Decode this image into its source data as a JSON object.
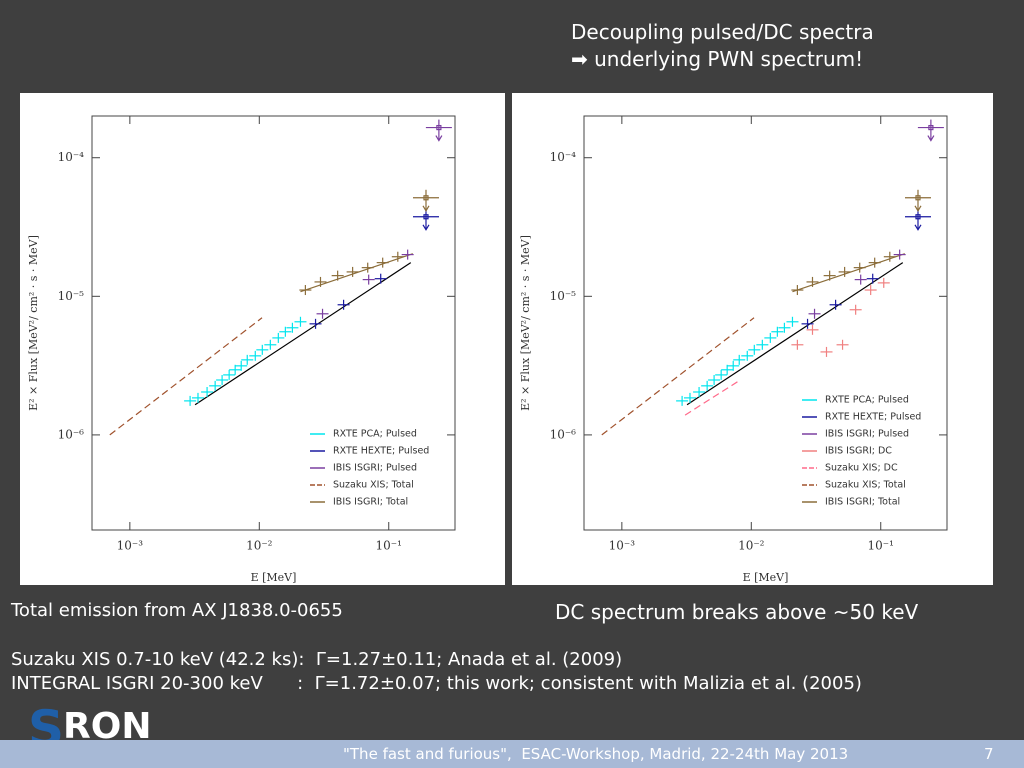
{
  "header": {
    "line1": "Decoupling pulsed/DC spectra",
    "line2": "➡ underlying PWN spectrum!"
  },
  "captions": {
    "left": "Total emission from AX J1838.0-0655",
    "right": "DC spectrum breaks above ~50 keV"
  },
  "notes": [
    "Suzaku XIS 0.7-10 keV (42.2 ks):  Γ=1.27±0.11; Anada et al. (2009)",
    "INTEGRAL ISGRI 20-300 keV      :  Γ=1.72±0.07; this work; consistent with Malizia et al. (2005)"
  ],
  "logo": {
    "initial": "S",
    "rest": "RON"
  },
  "footer": {
    "text": "\"The fast and furious\",  ESAC-Workshop, Madrid, 22-24th May 2013",
    "page": "7"
  },
  "chart_data": [
    {
      "type": "scatter",
      "x_label": "E [MeV]",
      "y_label": "E² × Flux [MeV²/ cm² · s · MeV]",
      "log_x": true,
      "log_y": true,
      "xlim": [
        0.00051,
        0.325
      ],
      "ylim": [
        2.06e-07,
        0.0002
      ],
      "xticks": [
        {
          "value": 0.001,
          "label": "10⁻³"
        },
        {
          "value": 0.01,
          "label": "10⁻²"
        },
        {
          "value": 0.1,
          "label": "10⁻¹"
        }
      ],
      "yticks": [
        {
          "value": 1e-06,
          "label": "10⁻⁶"
        },
        {
          "value": 1e-05,
          "label": "10⁻⁵"
        },
        {
          "value": 0.0001,
          "label": "10⁻⁴"
        }
      ],
      "legend": "lower right",
      "fits": [
        {
          "color": "#000000",
          "x": [
            0.00319,
            0.148
          ],
          "values": [
            1.65e-06,
            1.75e-05
          ]
        },
        {
          "color": "#8b6d3a",
          "x": [
            0.0208,
            0.1535
          ],
          "values": [
            1.08e-05,
            2.03e-05
          ]
        }
      ],
      "series": [
        {
          "name": "RXTE PCA; Pulsed",
          "color": "#00e5ee",
          "marker": "cross",
          "x": [
            0.00292,
            0.00336,
            0.00395,
            0.00456,
            0.00516,
            0.00585,
            0.00651,
            0.00725,
            0.00807,
            0.00931,
            0.01055,
            0.01217,
            0.01403,
            0.0159,
            0.01802,
            0.0208
          ],
          "values": [
            1.76e-06,
            1.85e-06,
            2.04e-06,
            2.26e-06,
            2.49e-06,
            2.71e-06,
            2.95e-06,
            3.15e-06,
            3.48e-06,
            3.72e-06,
            4.11e-06,
            4.47e-06,
            5.01e-06,
            5.55e-06,
            5.93e-06,
            6.55e-06
          ],
          "upper_limit": [
            false,
            false,
            false,
            false,
            false,
            false,
            false,
            false,
            false,
            false,
            false,
            false,
            false,
            false,
            false,
            false
          ]
        },
        {
          "name": "RXTE HEXTE; Pulsed",
          "color": "#1a1aa0",
          "marker": "cross",
          "x": [
            0.0272,
            0.0448,
            0.0867,
            0.194
          ],
          "values": [
            6.33e-06,
            8.69e-06,
            1.34e-05,
            3.75e-05
          ],
          "upper_limit": [
            false,
            false,
            false,
            true
          ]
        },
        {
          "name": "IBIS ISGRI; Pulsed",
          "color": "#7a3fa0",
          "marker": "cross",
          "x": [
            0.0308,
            0.07,
            0.14,
            0.244
          ],
          "values": [
            7.48e-06,
            1.32e-05,
            2e-05,
            0.000165
          ],
          "upper_limit": [
            false,
            false,
            false,
            true
          ]
        },
        {
          "name": "Suzaku XIS; Total",
          "color": "#a0522d",
          "marker": "dashed",
          "x": [
            0.0007,
            0.0105
          ],
          "values": [
            1e-06,
            7e-06
          ]
        },
        {
          "name": "IBIS ISGRI; Total",
          "color": "#8b6d3a",
          "marker": "cross",
          "x": [
            0.0227,
            0.0297,
            0.0403,
            0.0526,
            0.0688,
            0.0898,
            0.1175,
            0.194
          ],
          "values": [
            1.11e-05,
            1.27e-05,
            1.41e-05,
            1.5e-05,
            1.61e-05,
            1.75e-05,
            1.93e-05,
            5.14e-05
          ],
          "upper_limit": [
            false,
            false,
            false,
            false,
            false,
            false,
            false,
            true
          ]
        }
      ]
    },
    {
      "type": "scatter",
      "x_label": "E [MeV]",
      "y_label": "E² × Flux [MeV²/ cm² · s · MeV]",
      "log_x": true,
      "log_y": true,
      "xlim": [
        0.00051,
        0.325
      ],
      "ylim": [
        2.06e-07,
        0.0002
      ],
      "xticks": [
        {
          "value": 0.001,
          "label": "10⁻³"
        },
        {
          "value": 0.01,
          "label": "10⁻²"
        },
        {
          "value": 0.1,
          "label": "10⁻¹"
        }
      ],
      "yticks": [
        {
          "value": 1e-06,
          "label": "10⁻⁶"
        },
        {
          "value": 1e-05,
          "label": "10⁻⁵"
        },
        {
          "value": 0.0001,
          "label": "10⁻⁴"
        }
      ],
      "legend": "lower right",
      "fits": [
        {
          "color": "#000000",
          "x": [
            0.00319,
            0.148
          ],
          "values": [
            1.65e-06,
            1.75e-05
          ]
        },
        {
          "color": "#8b6d3a",
          "x": [
            0.0208,
            0.1535
          ],
          "values": [
            1.08e-05,
            2.03e-05
          ]
        }
      ],
      "series": [
        {
          "name": "RXTE PCA; Pulsed",
          "color": "#00e5ee",
          "marker": "cross",
          "x": [
            0.00292,
            0.00336,
            0.00395,
            0.00456,
            0.00516,
            0.00585,
            0.00651,
            0.00725,
            0.00807,
            0.00931,
            0.01055,
            0.01217,
            0.01403,
            0.0159,
            0.01802,
            0.0208
          ],
          "values": [
            1.76e-06,
            1.85e-06,
            2.04e-06,
            2.26e-06,
            2.49e-06,
            2.71e-06,
            2.95e-06,
            3.15e-06,
            3.48e-06,
            3.72e-06,
            4.11e-06,
            4.47e-06,
            5.01e-06,
            5.55e-06,
            5.93e-06,
            6.55e-06
          ],
          "upper_limit": [
            false,
            false,
            false,
            false,
            false,
            false,
            false,
            false,
            false,
            false,
            false,
            false,
            false,
            false,
            false,
            false
          ]
        },
        {
          "name": "RXTE HEXTE; Pulsed",
          "color": "#1a1aa0",
          "marker": "cross",
          "x": [
            0.0272,
            0.0448,
            0.0867,
            0.194
          ],
          "values": [
            6.33e-06,
            8.69e-06,
            1.34e-05,
            3.75e-05
          ],
          "upper_limit": [
            false,
            false,
            false,
            true
          ]
        },
        {
          "name": "IBIS ISGRI; Pulsed",
          "color": "#7a3fa0",
          "marker": "cross",
          "x": [
            0.0308,
            0.07,
            0.14,
            0.244
          ],
          "values": [
            7.48e-06,
            1.32e-05,
            2e-05,
            0.000165
          ],
          "upper_limit": [
            false,
            false,
            false,
            true
          ]
        },
        {
          "name": "IBIS ISGRI; DC",
          "color": "#f08080",
          "marker": "cross",
          "x": [
            0.0227,
            0.0297,
            0.0381,
            0.0507,
            0.064,
            0.0836,
            0.1055
          ],
          "values": [
            4.47e-06,
            5.73e-06,
            3.97e-06,
            4.47e-06,
            8e-06,
            1.11e-05,
            1.25e-05
          ],
          "upper_limit": [
            false,
            false,
            false,
            false,
            false,
            false,
            false
          ]
        },
        {
          "name": "Suzaku XIS; DC",
          "color": "#ff6a8a",
          "marker": "dashed",
          "x": [
            0.00308,
            0.00822
          ],
          "values": [
            1.39e-06,
            2.49e-06
          ]
        },
        {
          "name": "Suzaku XIS; Total",
          "color": "#a0522d",
          "marker": "dashed",
          "x": [
            0.0007,
            0.0105
          ],
          "values": [
            1e-06,
            7e-06
          ]
        },
        {
          "name": "IBIS ISGRI; Total",
          "color": "#8b6d3a",
          "marker": "cross",
          "x": [
            0.0227,
            0.0297,
            0.0403,
            0.0526,
            0.0688,
            0.0898,
            0.1175,
            0.194
          ],
          "values": [
            1.11e-05,
            1.27e-05,
            1.41e-05,
            1.5e-05,
            1.61e-05,
            1.75e-05,
            1.93e-05,
            5.14e-05
          ],
          "upper_limit": [
            false,
            false,
            false,
            false,
            false,
            false,
            false,
            true
          ]
        }
      ]
    }
  ]
}
